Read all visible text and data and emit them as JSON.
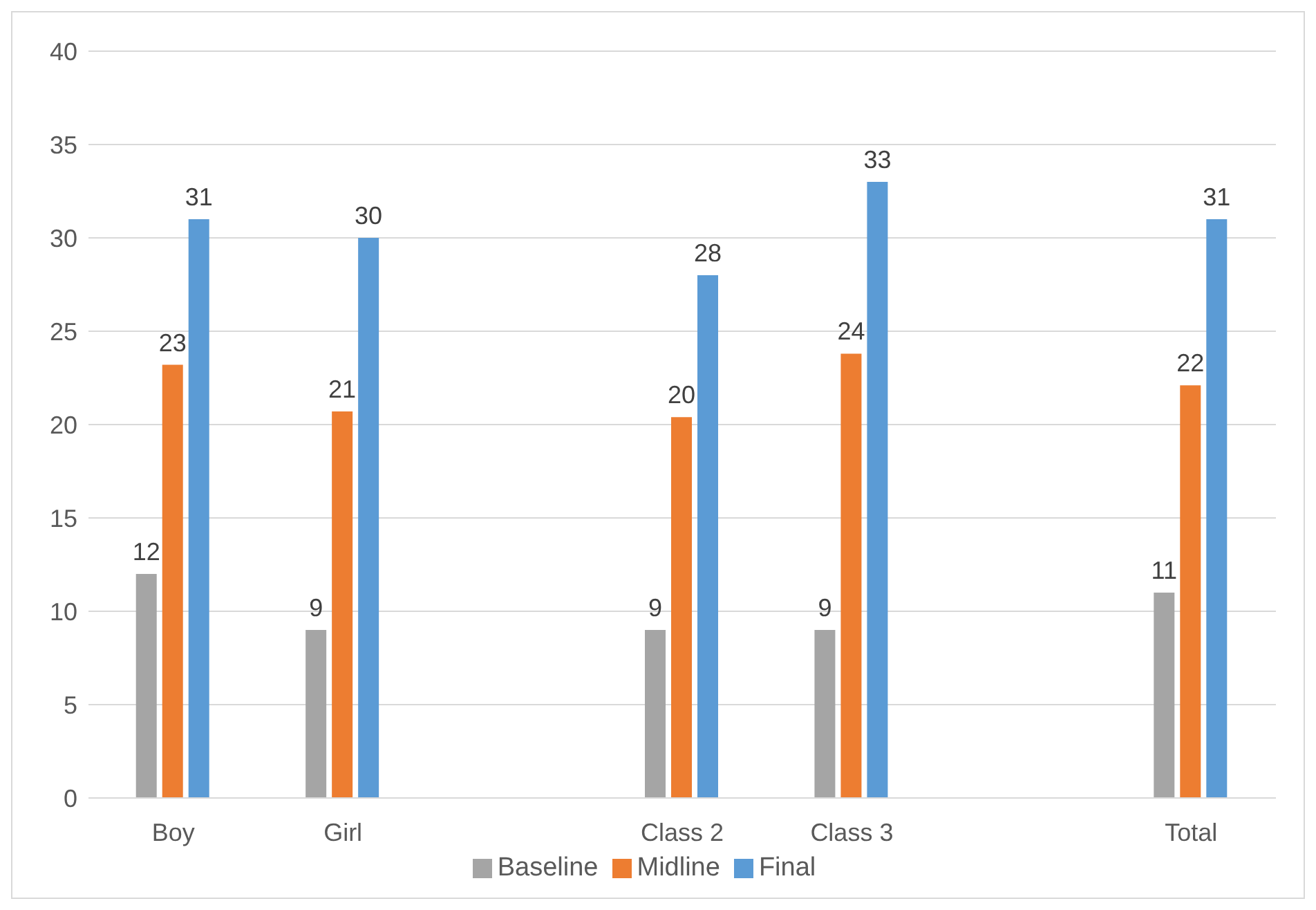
{
  "chart_data": {
    "type": "bar",
    "categories": [
      "Boy",
      "Girl",
      null,
      "Class 2",
      "Class 3",
      null,
      "Total"
    ],
    "series": [
      {
        "name": "Baseline",
        "color": "#a5a5a5",
        "values": [
          12,
          9,
          null,
          9,
          9,
          null,
          11
        ],
        "value_labels": [
          "12",
          "9",
          null,
          "9",
          "9",
          null,
          "11"
        ]
      },
      {
        "name": "Midline",
        "color": "#ed7d31",
        "values": [
          23.2,
          20.7,
          null,
          20.4,
          23.8,
          null,
          22.1
        ],
        "value_labels": [
          "23",
          "21",
          null,
          "20",
          "24",
          null,
          "22"
        ]
      },
      {
        "name": "Final",
        "color": "#5b9bd5",
        "values": [
          31,
          30,
          null,
          28,
          33,
          null,
          31
        ],
        "value_labels": [
          "31",
          "30",
          null,
          "28",
          "33",
          null,
          "31"
        ]
      }
    ],
    "ylim": [
      0,
      40
    ],
    "yticks": [
      0,
      5,
      10,
      15,
      20,
      25,
      30,
      35,
      40
    ],
    "grid": "y",
    "legend": "bottom"
  }
}
